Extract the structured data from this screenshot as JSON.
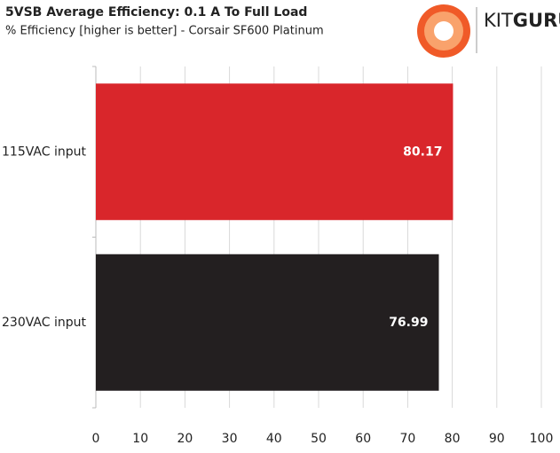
{
  "brand": {
    "light": "KIT",
    "bold": "GURU"
  },
  "chart_data": {
    "type": "hbar",
    "title": "5VSB Average Efficiency: 0.1 A To Full Load",
    "subtitle": "% Efficiency [higher is better] - Corsair SF600 Platinum",
    "categories": [
      "115VAC input",
      "230VAC input"
    ],
    "values": [
      80.17,
      76.99
    ],
    "colors": [
      "#d9262b",
      "#231f20"
    ],
    "xlim": [
      0,
      100
    ],
    "xticks": [
      0,
      10,
      20,
      30,
      40,
      50,
      60,
      70,
      80,
      90,
      100
    ],
    "grid": true
  }
}
